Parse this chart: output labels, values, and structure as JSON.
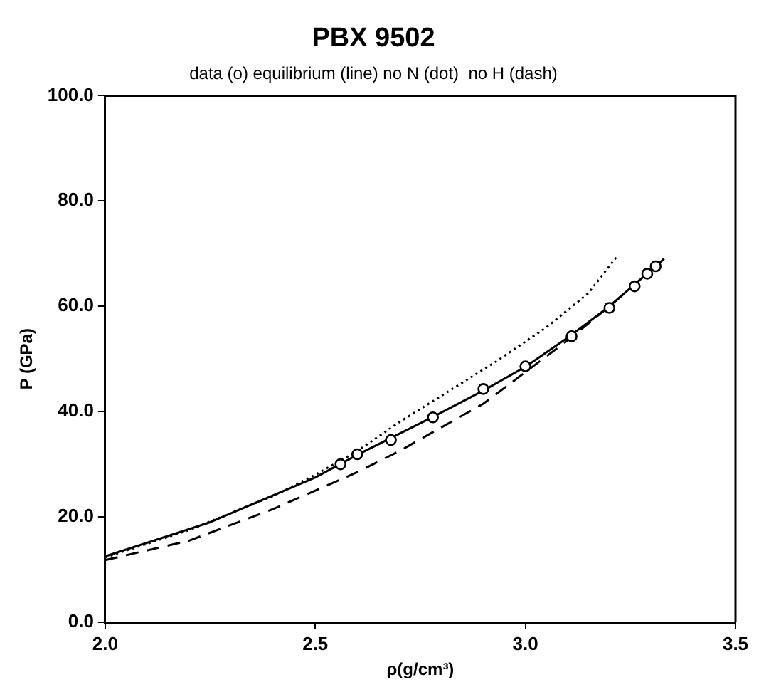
{
  "chart_data": {
    "type": "line",
    "title": "PBX 9502",
    "subtitle": "data (o) equilibrium (line) no N (dot)  no H (dash)",
    "xlabel": "ρ(g/cm³)",
    "ylabel": "P (GPa)",
    "xlim": [
      2.0,
      3.5
    ],
    "xticks": [
      {
        "value": 2.0,
        "label": "2.0"
      },
      {
        "value": 2.5,
        "label": "2.5"
      },
      {
        "value": 3.0,
        "label": "3.0"
      },
      {
        "value": 3.5,
        "label": "3.5"
      }
    ],
    "ylim": [
      0,
      100
    ],
    "yticks": [
      {
        "value": 0,
        "label": "0.0"
      },
      {
        "value": 20,
        "label": "20.0"
      },
      {
        "value": 40,
        "label": "40.0"
      },
      {
        "value": 60,
        "label": "60.0"
      },
      {
        "value": 80,
        "label": "80.0"
      },
      {
        "value": 100,
        "label": "100.0"
      }
    ],
    "grid": false,
    "legend": false,
    "series": [
      {
        "type": "scatter",
        "marker": "circle",
        "color": "#000000",
        "x": [
          2.56,
          2.6,
          2.68,
          2.78,
          2.9,
          3.0,
          3.11,
          3.2,
          3.26,
          3.29,
          3.31
        ],
        "values": [
          30,
          31.9,
          34.6,
          38.9,
          44.3,
          48.6,
          54.3,
          59.7,
          63.8,
          66.2,
          67.6
        ]
      },
      {
        "type": "line",
        "line_style": "solid",
        "marker": "none",
        "color": "#000000",
        "x": [
          2.0,
          2.25,
          2.5,
          2.6,
          2.78,
          2.9,
          3.0,
          3.1,
          3.2,
          3.33
        ],
        "values": [
          12.5,
          19,
          27.5,
          31.8,
          39,
          44,
          48.5,
          54,
          60,
          69
        ]
      },
      {
        "type": "line",
        "line_style": "dotted",
        "marker": "none",
        "color": "#000000",
        "x": [
          2.0,
          2.2,
          2.4,
          2.5,
          2.6,
          2.7,
          2.8,
          2.93,
          3.05,
          3.15,
          3.22
        ],
        "values": [
          12.3,
          17.5,
          24,
          28,
          32.5,
          38,
          43,
          49.5,
          56,
          62.5,
          69.7
        ]
      },
      {
        "type": "line",
        "line_style": "dashed",
        "marker": "none",
        "color": "#000000",
        "x": [
          2.0,
          2.2,
          2.4,
          2.5,
          2.6,
          2.7,
          2.8,
          2.9,
          3.0,
          3.1,
          3.2,
          3.33
        ],
        "values": [
          11.8,
          15.5,
          21.5,
          25,
          28.5,
          32.5,
          37,
          41.5,
          47.5,
          53.5,
          60,
          69
        ]
      }
    ]
  }
}
